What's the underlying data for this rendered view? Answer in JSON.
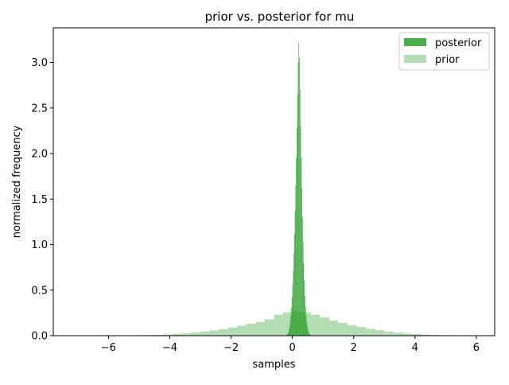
{
  "chart_data": {
    "type": "histogram",
    "title": "prior vs. posterior for mu",
    "xlabel": "samples",
    "ylabel": "normalized frequency",
    "xlim": [
      -7.8,
      6.6
    ],
    "ylim": [
      0,
      3.38
    ],
    "xticks": [
      -6,
      -4,
      -2,
      0,
      2,
      4,
      6
    ],
    "xtick_labels": [
      "−6",
      "−4",
      "−2",
      "0",
      "2",
      "4",
      "6"
    ],
    "yticks": [
      0.0,
      0.5,
      1.0,
      1.5,
      2.0,
      2.5,
      3.0
    ],
    "ytick_labels": [
      "0.0",
      "0.5",
      "1.0",
      "1.5",
      "2.0",
      "2.5",
      "3.0"
    ],
    "legend_position": "top-right",
    "series": [
      {
        "name": "posterior",
        "color": "#2ca02c",
        "opacity": 0.85,
        "bin_width": 0.02,
        "bins": [
          [
            -0.2,
            0.006
          ],
          [
            -0.18,
            0.01
          ],
          [
            -0.16,
            0.02
          ],
          [
            -0.14,
            0.035
          ],
          [
            -0.12,
            0.06
          ],
          [
            -0.1,
            0.1
          ],
          [
            -0.08,
            0.15
          ],
          [
            -0.06,
            0.22
          ],
          [
            -0.04,
            0.31
          ],
          [
            -0.02,
            0.42
          ],
          [
            0.0,
            0.56
          ],
          [
            0.02,
            0.72
          ],
          [
            0.04,
            0.9
          ],
          [
            0.06,
            1.12
          ],
          [
            0.08,
            1.37
          ],
          [
            0.1,
            1.65
          ],
          [
            0.12,
            1.95
          ],
          [
            0.14,
            2.28
          ],
          [
            0.16,
            2.65
          ],
          [
            0.18,
            3.0
          ],
          [
            0.2,
            3.22
          ],
          [
            0.22,
            3.05
          ],
          [
            0.24,
            2.7
          ],
          [
            0.26,
            2.3
          ],
          [
            0.28,
            1.95
          ],
          [
            0.3,
            1.62
          ],
          [
            0.32,
            1.3
          ],
          [
            0.34,
            1.03
          ],
          [
            0.36,
            0.8
          ],
          [
            0.38,
            0.6
          ],
          [
            0.4,
            0.44
          ],
          [
            0.42,
            0.32
          ],
          [
            0.44,
            0.22
          ],
          [
            0.46,
            0.15
          ],
          [
            0.48,
            0.1
          ],
          [
            0.5,
            0.065
          ],
          [
            0.52,
            0.04
          ],
          [
            0.54,
            0.025
          ],
          [
            0.56,
            0.014
          ],
          [
            0.58,
            0.008
          ]
        ]
      },
      {
        "name": "prior",
        "color": "#2ca02c",
        "opacity": 0.36,
        "bin_width": 0.3,
        "bins": [
          [
            -6.3,
            0.001
          ],
          [
            -6.0,
            0.001
          ],
          [
            -5.7,
            0.002
          ],
          [
            -5.4,
            0.003
          ],
          [
            -5.1,
            0.004
          ],
          [
            -4.8,
            0.006
          ],
          [
            -4.5,
            0.009
          ],
          [
            -4.2,
            0.013
          ],
          [
            -3.9,
            0.019
          ],
          [
            -3.6,
            0.026
          ],
          [
            -3.3,
            0.035
          ],
          [
            -3.0,
            0.046
          ],
          [
            -2.7,
            0.058
          ],
          [
            -2.4,
            0.072
          ],
          [
            -2.1,
            0.09
          ],
          [
            -1.8,
            0.11
          ],
          [
            -1.5,
            0.13
          ],
          [
            -1.2,
            0.15
          ],
          [
            -0.9,
            0.18
          ],
          [
            -0.6,
            0.23
          ],
          [
            -0.3,
            0.255
          ],
          [
            0.0,
            0.27
          ],
          [
            0.3,
            0.255
          ],
          [
            0.6,
            0.23
          ],
          [
            0.9,
            0.2
          ],
          [
            1.2,
            0.165
          ],
          [
            1.5,
            0.14
          ],
          [
            1.8,
            0.115
          ],
          [
            2.1,
            0.095
          ],
          [
            2.4,
            0.075
          ],
          [
            2.7,
            0.06
          ],
          [
            3.0,
            0.045
          ],
          [
            3.3,
            0.033
          ],
          [
            3.6,
            0.024
          ],
          [
            3.9,
            0.017
          ],
          [
            4.2,
            0.012
          ],
          [
            4.5,
            0.008
          ],
          [
            4.8,
            0.005
          ],
          [
            5.1,
            0.003
          ],
          [
            5.4,
            0.002
          ]
        ]
      }
    ]
  }
}
